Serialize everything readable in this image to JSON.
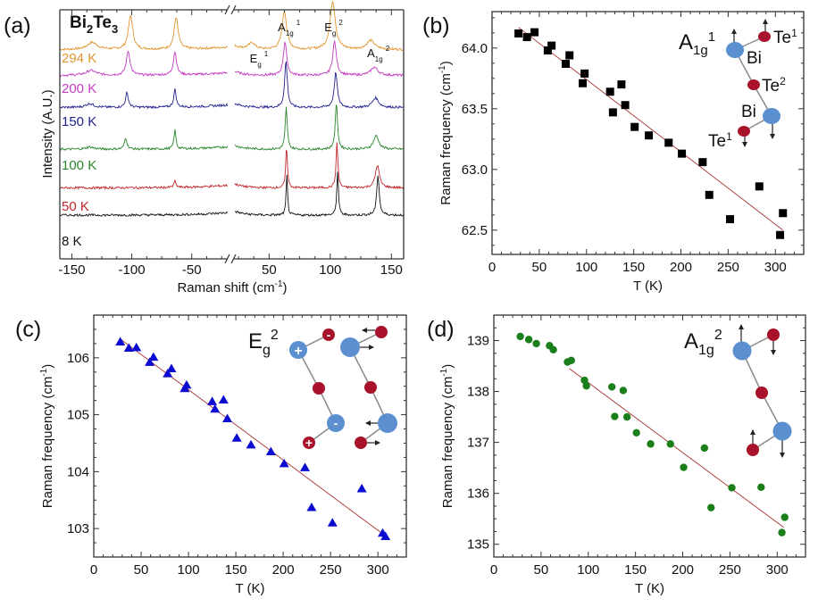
{
  "figure": {
    "colors": {
      "fit_line": "#a83232",
      "bi_atom": "#5b8fcf",
      "te_atom": "#a8122a",
      "square_marker": "#000000",
      "triangle_marker": "#0a0ad0",
      "circle_marker": "#1a7f1a"
    }
  },
  "chart_data": [
    {
      "id": "a",
      "panel_label": "(a)",
      "type": "line",
      "title": "Bi2Te3",
      "title_parts": {
        "el1": "Bi",
        "sub1": "2",
        "el2": "Te",
        "sub2": "3"
      },
      "xlabel": "Raman shift (cm-1)",
      "xlabel_parts": {
        "main": "Raman shift (cm",
        "sup": "-1",
        "close": ")"
      },
      "ylabel": "Intensity (A.U.)",
      "x_segments": [
        [
          -160,
          -20
        ],
        [
          22,
          160
        ]
      ],
      "axis_break": true,
      "xticks": [
        -150,
        -100,
        -50,
        50,
        100,
        150
      ],
      "xtick_labels": [
        "-150",
        "-100",
        "-50",
        "50",
        "100",
        "150"
      ],
      "y_ticks_shown": false,
      "series": [
        {
          "name": "294 K",
          "label": "294 K",
          "color": "#e0952f",
          "offset": 6.4,
          "peaks": [
            [
              -133,
              0.22,
              5
            ],
            [
              -101,
              1.05,
              2.2
            ],
            [
              -63,
              1.0,
              2.0
            ],
            [
              36,
              0.2,
              3
            ],
            [
              62.5,
              1.2,
              2.2
            ],
            [
              102,
              1.5,
              2.6
            ],
            [
              133,
              0.28,
              4
            ]
          ]
        },
        {
          "name": "200 K",
          "label": "200 K",
          "color": "#c23cc2",
          "offset": 5.6,
          "peaks": [
            [
              -134,
              0.15,
              5
            ],
            [
              -103,
              0.75,
              1.8
            ],
            [
              -64,
              0.72,
              1.6
            ],
            [
              63,
              1.05,
              1.6
            ],
            [
              103.5,
              1.05,
              1.8
            ],
            [
              136,
              0.25,
              3.5
            ]
          ]
        },
        {
          "name": "150 K",
          "label": "150 K",
          "color": "#22228f",
          "offset": 4.6,
          "peaks": [
            [
              -135,
              0.12,
              4
            ],
            [
              -104,
              0.45,
              1.4
            ],
            [
              -64,
              0.55,
              1.2
            ],
            [
              63.8,
              1.45,
              1.3
            ],
            [
              104.5,
              1.1,
              1.5
            ],
            [
              137,
              0.3,
              3
            ]
          ]
        },
        {
          "name": "100 K",
          "label": "100 K",
          "color": "#2a862a",
          "offset": 3.3,
          "peaks": [
            [
              -135,
              0.07,
              4
            ],
            [
              -105,
              0.35,
              1.3
            ],
            [
              -64,
              0.58,
              1.0
            ],
            [
              64,
              1.3,
              1.0
            ],
            [
              105,
              1.45,
              1.1
            ],
            [
              137.5,
              0.42,
              2.6
            ]
          ]
        },
        {
          "name": "50 K",
          "label": "50 K",
          "color": "#c0262b",
          "offset": 2.1,
          "peaks": [
            [
              -64,
              0.2,
              1.0
            ],
            [
              64.3,
              1.3,
              0.8
            ],
            [
              105.5,
              1.4,
              0.9
            ],
            [
              138.5,
              0.7,
              2.0
            ]
          ]
        },
        {
          "name": "8 K",
          "label": "8 K",
          "color": "#111111",
          "offset": 1.25,
          "peaks": [
            [
              64.5,
              1.25,
              0.7
            ],
            [
              106,
              1.35,
              0.8
            ],
            [
              139,
              1.25,
              1.2
            ]
          ]
        }
      ],
      "annotations": [
        {
          "id": "eg1",
          "main": "E",
          "sub": "g",
          "sup": "1",
          "x": 40
        },
        {
          "id": "a1g1",
          "main": "A",
          "sub": "1g",
          "sup": "1",
          "x": 63
        },
        {
          "id": "eg2",
          "main": "E",
          "sub": "g",
          "sup": "2",
          "x": 101
        },
        {
          "id": "a1g2",
          "main": "A",
          "sub": "1g",
          "sup": "2",
          "x": 136
        }
      ]
    },
    {
      "id": "b",
      "panel_label": "(b)",
      "type": "scatter",
      "marker": "square",
      "xlabel": "T (K)",
      "ylabel": "Raman frequency (cm-1)",
      "ylabel_parts": {
        "main": "Raman frequency (cm",
        "sup": "-1",
        "close": ")"
      },
      "xlim": [
        0,
        330
      ],
      "ylim": [
        62.3,
        64.3
      ],
      "xticks": [
        0,
        50,
        100,
        150,
        200,
        250,
        300
      ],
      "xtick_labels": [
        "0",
        "50",
        "100",
        "150",
        "200",
        "250",
        "300"
      ],
      "yticks": [
        62.5,
        63.0,
        63.5,
        64.0
      ],
      "ytick_labels": [
        "62.5",
        "63.0",
        "63.5",
        "64.0"
      ],
      "mode": {
        "main": "A",
        "sub": "1g",
        "sup": "1"
      },
      "x": [
        28,
        37,
        45,
        59,
        63,
        78,
        82,
        96,
        98,
        125,
        128,
        137,
        141,
        151,
        166,
        187,
        201,
        223,
        230,
        252,
        283,
        305,
        308
      ],
      "y": [
        64.12,
        64.09,
        64.13,
        63.98,
        64.02,
        63.87,
        63.94,
        63.71,
        63.79,
        63.64,
        63.47,
        63.7,
        63.53,
        63.35,
        63.28,
        63.22,
        63.13,
        63.06,
        62.79,
        62.59,
        62.86,
        62.46,
        62.64
      ],
      "fit": {
        "x": [
          28,
          308
        ],
        "y": [
          64.17,
          62.5
        ]
      },
      "atom_labels": {
        "te1_top": "Te",
        "te1_top_sup": "1",
        "bi_top": "Bi",
        "te2": "Te",
        "te2_sup": "2",
        "bi_bottom": "Bi",
        "te1_bottom": "Te",
        "te1_bottom_sup": "1"
      }
    },
    {
      "id": "c",
      "panel_label": "(c)",
      "type": "scatter",
      "marker": "triangle",
      "xlabel": "T (K)",
      "ylabel": "Raman frequency (cm-1)",
      "ylabel_parts": {
        "main": "Raman frequency (cm",
        "sup": "-1",
        "close": ")"
      },
      "xlim": [
        0,
        330
      ],
      "ylim": [
        102.5,
        106.75
      ],
      "xticks": [
        0,
        50,
        100,
        150,
        200,
        250,
        300
      ],
      "xtick_labels": [
        "0",
        "50",
        "100",
        "150",
        "200",
        "250",
        "300"
      ],
      "yticks": [
        103,
        104,
        105,
        106
      ],
      "ytick_labels": [
        "103",
        "104",
        "105",
        "106"
      ],
      "mode": {
        "main": "E",
        "sub": "g",
        "sup": "2"
      },
      "x": [
        28,
        37,
        45,
        59,
        63,
        78,
        82,
        96,
        98,
        125,
        128,
        137,
        141,
        151,
        166,
        187,
        201,
        223,
        230,
        252,
        283,
        305,
        308
      ],
      "y": [
        106.28,
        106.17,
        106.18,
        105.92,
        106.01,
        105.72,
        105.81,
        105.46,
        105.52,
        105.23,
        105.1,
        105.26,
        104.93,
        104.59,
        104.47,
        104.35,
        104.14,
        104.07,
        103.37,
        103.1,
        103.7,
        102.92,
        102.86
      ],
      "fit": {
        "x": [
          28,
          308
        ],
        "y": [
          106.33,
          102.87
        ]
      },
      "atom_signs": {
        "plus": "+",
        "minus": "-"
      }
    },
    {
      "id": "d",
      "panel_label": "(d)",
      "type": "scatter",
      "marker": "circle",
      "xlabel": "T (K)",
      "ylabel": "Raman frequency (cm-1)",
      "ylabel_parts": {
        "main": "Raman frequency (cm",
        "sup": "-1",
        "close": ")"
      },
      "xlim": [
        0,
        330
      ],
      "ylim": [
        134.75,
        139.5
      ],
      "xticks": [
        0,
        50,
        100,
        150,
        200,
        250,
        300
      ],
      "xtick_labels": [
        "0",
        "50",
        "100",
        "150",
        "200",
        "250",
        "300"
      ],
      "yticks": [
        135,
        136,
        137,
        138,
        139
      ],
      "ytick_labels": [
        "135",
        "136",
        "137",
        "138",
        "139"
      ],
      "mode": {
        "main": "A",
        "sub": "1g",
        "sup": "2"
      },
      "x": [
        28,
        37,
        45,
        59,
        63,
        78,
        82,
        96,
        98,
        125,
        128,
        137,
        141,
        151,
        166,
        187,
        201,
        223,
        230,
        252,
        283,
        305,
        308
      ],
      "y": [
        139.08,
        139.02,
        138.94,
        138.9,
        138.82,
        138.58,
        138.61,
        138.22,
        138.11,
        138.09,
        137.51,
        138.02,
        137.5,
        137.19,
        136.97,
        136.97,
        136.51,
        136.89,
        135.72,
        136.11,
        136.12,
        135.23,
        135.53
      ],
      "fit": {
        "x": [
          80,
          307
        ],
        "y": [
          138.45,
          135.33
        ]
      }
    }
  ]
}
